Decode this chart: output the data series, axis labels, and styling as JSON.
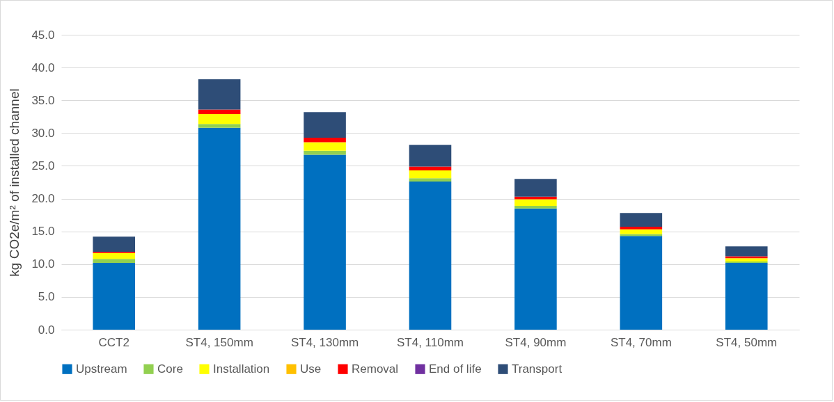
{
  "chart_data": {
    "type": "bar",
    "stacked": true,
    "ylabel": "kg CO2e/m² of installed channel",
    "categories": [
      "CCT2",
      "ST4, 150mm",
      "ST4, 130mm",
      "ST4, 110mm",
      "ST4, 90mm",
      "ST4, 70mm",
      "ST4, 50mm"
    ],
    "series": [
      {
        "name": "Upstream",
        "color": "#0070c0",
        "values": [
          10.2,
          30.8,
          26.7,
          22.6,
          18.5,
          14.3,
          10.2
        ]
      },
      {
        "name": "Core",
        "color": "#92d050",
        "values": [
          0.6,
          0.6,
          0.6,
          0.5,
          0.4,
          0.3,
          0.2
        ]
      },
      {
        "name": "Installation",
        "color": "#ffff00",
        "values": [
          0.9,
          1.5,
          1.3,
          1.2,
          1.0,
          0.7,
          0.5
        ]
      },
      {
        "name": "Use",
        "color": "#ffc000",
        "values": [
          0,
          0,
          0,
          0,
          0,
          0,
          0
        ]
      },
      {
        "name": "Removal",
        "color": "#ff0000",
        "values": [
          0.2,
          0.7,
          0.7,
          0.6,
          0.4,
          0.4,
          0.3
        ]
      },
      {
        "name": "End of life",
        "color": "#7030a0",
        "values": [
          0,
          0,
          0,
          0,
          0,
          0,
          0
        ]
      },
      {
        "name": "Transport",
        "color": "#2e4d77",
        "values": [
          2.3,
          4.6,
          3.9,
          3.3,
          2.7,
          2.1,
          1.5
        ]
      }
    ],
    "ylim": [
      0,
      45
    ],
    "yticks": [
      {
        "value": 0,
        "label": "0.0"
      },
      {
        "value": 5,
        "label": "5.0"
      },
      {
        "value": 10,
        "label": "10.0"
      },
      {
        "value": 15,
        "label": "15.0"
      },
      {
        "value": 20,
        "label": "20.0"
      },
      {
        "value": 25,
        "label": "25.0"
      },
      {
        "value": 30,
        "label": "30.0"
      },
      {
        "value": 35,
        "label": "35.0"
      },
      {
        "value": 40,
        "label": "40.0"
      },
      {
        "value": 45,
        "label": "45.0"
      }
    ],
    "grid": "y",
    "legend": "bottom"
  }
}
